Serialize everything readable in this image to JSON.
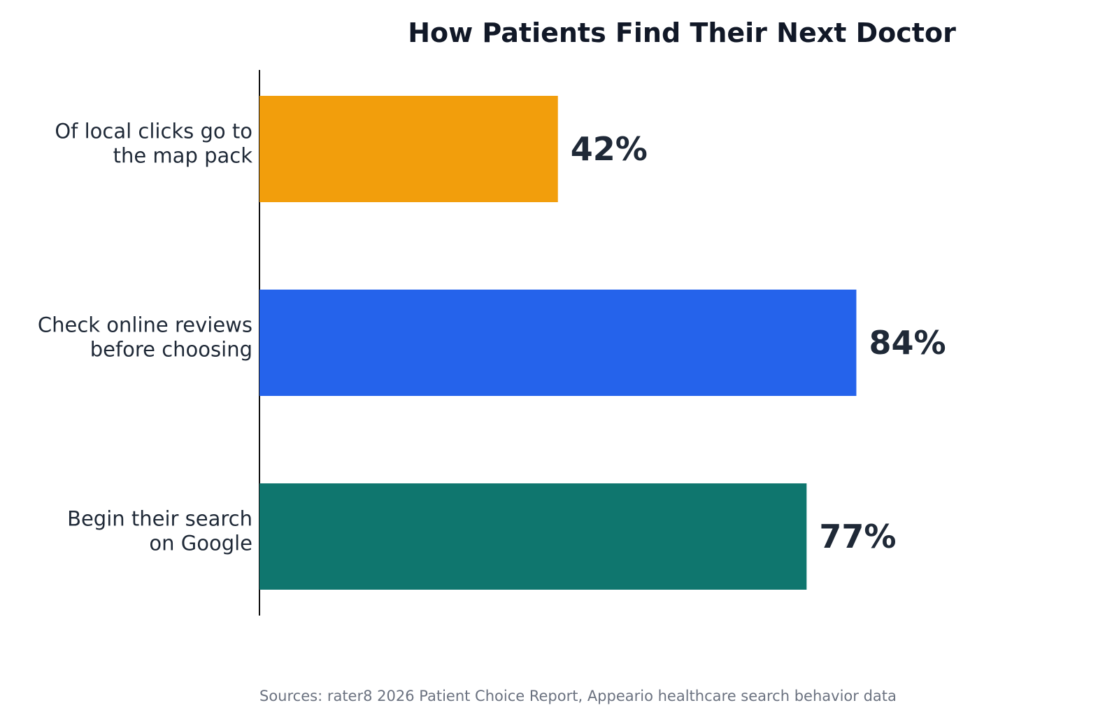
{
  "chart_data": {
    "type": "bar",
    "orientation": "horizontal",
    "title": "How Patients Find Their Next Doctor",
    "categories": [
      [
        "Of local clicks go to",
        "the map pack"
      ],
      [
        "Check online reviews",
        "before choosing"
      ],
      [
        "Begin their search",
        "on Google"
      ]
    ],
    "values": [
      42,
      84,
      77
    ],
    "value_labels": [
      "42%",
      "84%",
      "77%"
    ],
    "colors": [
      "#f29e0c",
      "#2563eb",
      "#0f766e"
    ],
    "xlim": [
      0,
      100
    ],
    "grid": false,
    "source": "Sources: rater8 2026 Patient Choice Report, Appeario healthcare search behavior data"
  }
}
